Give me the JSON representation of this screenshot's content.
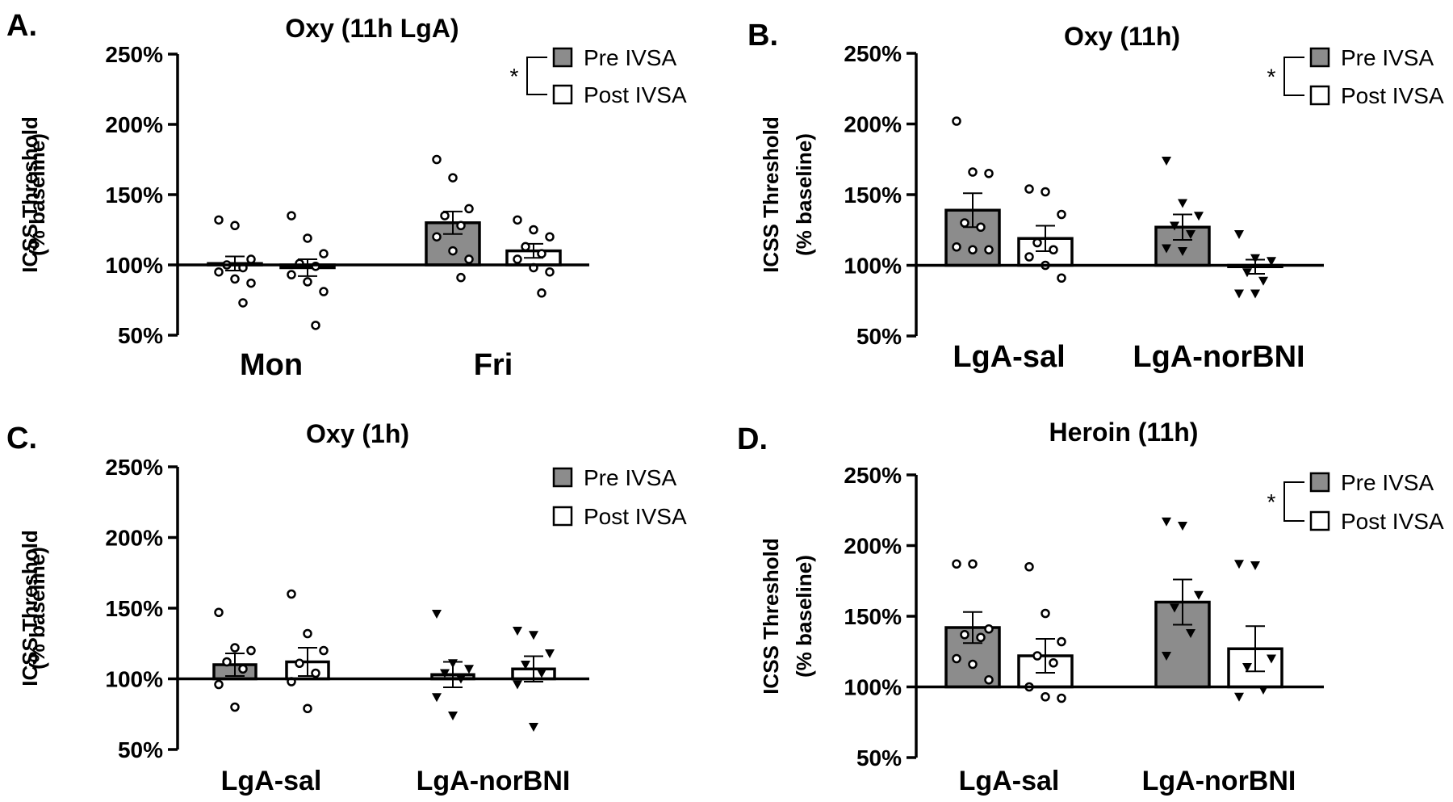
{
  "chart_data": [
    {
      "panel": "A.",
      "type": "bar",
      "title": "Oxy (11h LgA)",
      "ylabel": [
        "ICSS Threshold",
        "(% baseline)"
      ],
      "ylim": [
        50,
        250
      ],
      "yticks": [
        50,
        100,
        150,
        200,
        250
      ],
      "ytick_labels": [
        "50%",
        "100%",
        "150%",
        "200%",
        "250%"
      ],
      "baseline": 100,
      "categories": [
        "Mon",
        "Fri"
      ],
      "series": [
        {
          "name": "Pre IVSA",
          "values": [
            101,
            130
          ],
          "sem": [
            5,
            8
          ],
          "points": [
            [
              132,
              128,
              104,
              100,
              98,
              95,
              90,
              87,
              73
            ],
            [
              175,
              162,
              140,
              135,
              128,
              120,
              110,
              104,
              91
            ]
          ],
          "marker": "circle"
        },
        {
          "name": "Post IVSA",
          "values": [
            98,
            110
          ],
          "sem": [
            6,
            5
          ],
          "points": [
            [
              135,
              119,
              108,
              101,
              99,
              93,
              88,
              81,
              57
            ],
            [
              132,
              125,
              120,
              113,
              108,
              104,
              98,
              95,
              80
            ]
          ],
          "marker": "circle"
        }
      ],
      "legend": {
        "entries": [
          "Pre IVSA",
          "Post IVSA"
        ],
        "significance": "*"
      }
    },
    {
      "panel": "B.",
      "type": "bar",
      "title": "Oxy (11h)",
      "ylabel": [
        "ICSS Threshold",
        "(% baseline)"
      ],
      "ylim": [
        50,
        250
      ],
      "yticks": [
        50,
        100,
        150,
        200,
        250
      ],
      "ytick_labels": [
        "50%",
        "100%",
        "150%",
        "200%",
        "250%"
      ],
      "baseline": 100,
      "categories": [
        "LgA-sal",
        "LgA-norBNI"
      ],
      "series": [
        {
          "name": "Pre IVSA",
          "values": [
            139,
            127
          ],
          "sem": [
            12,
            9
          ],
          "points": [
            [
              202,
              166,
              165,
              130,
              127,
              113,
              111,
              111
            ],
            [
              174,
              144,
              135,
              128,
              122,
              112,
              110
            ]
          ],
          "marker": [
            "circle",
            "triangle"
          ]
        },
        {
          "name": "Post IVSA",
          "values": [
            119,
            99
          ],
          "sem": [
            9,
            5
          ],
          "points": [
            [
              154,
              152,
              136,
              116,
              111,
              106,
              100,
              91
            ],
            [
              122,
              105,
              103,
              95,
              89,
              80,
              80
            ]
          ],
          "marker": [
            "circle",
            "triangle"
          ]
        }
      ],
      "legend": {
        "entries": [
          "Pre IVSA",
          "Post IVSA"
        ],
        "significance": "*"
      }
    },
    {
      "panel": "C.",
      "type": "bar",
      "title": "Oxy (1h)",
      "ylabel": [
        "ICSS Threshold",
        "(% baseline)"
      ],
      "ylim": [
        50,
        250
      ],
      "yticks": [
        50,
        100,
        150,
        200,
        250
      ],
      "ytick_labels": [
        "50%",
        "100%",
        "150%",
        "200%",
        "250%"
      ],
      "baseline": 100,
      "categories": [
        "LgA-sal",
        "LgA-norBNI"
      ],
      "series": [
        {
          "name": "Pre IVSA",
          "values": [
            110,
            103
          ],
          "sem": [
            8,
            9
          ],
          "points": [
            [
              147,
              122,
              120,
              112,
              107,
              96,
              80
            ],
            [
              146,
              111,
              107,
              104,
              100,
              87,
              74
            ]
          ],
          "marker": [
            "circle",
            "triangle"
          ]
        },
        {
          "name": "Post IVSA",
          "values": [
            112,
            107
          ],
          "sem": [
            10,
            9
          ],
          "points": [
            [
              160,
              132,
              120,
              111,
              104,
              98,
              79
            ],
            [
              134,
              131,
              118,
              110,
              104,
              96,
              66
            ]
          ],
          "marker": [
            "circle",
            "triangle"
          ]
        }
      ],
      "legend": {
        "entries": [
          "Pre IVSA",
          "Post IVSA"
        ],
        "significance": ""
      }
    },
    {
      "panel": "D.",
      "type": "bar",
      "title": "Heroin (11h)",
      "ylabel": [
        "ICSS Threshold",
        "(% baseline)"
      ],
      "ylim": [
        50,
        250
      ],
      "yticks": [
        50,
        100,
        150,
        200,
        250
      ],
      "ytick_labels": [
        "50%",
        "100%",
        "150%",
        "200%",
        "250%"
      ],
      "baseline": 100,
      "categories": [
        "LgA-sal",
        "LgA-norBNI"
      ],
      "series": [
        {
          "name": "Pre IVSA",
          "values": [
            142,
            160
          ],
          "sem": [
            11,
            16
          ],
          "points": [
            [
              187,
              187,
              141,
              137,
              135,
              120,
              116,
              105
            ],
            [
              217,
              214,
              165,
              156,
              138,
              122
            ]
          ],
          "marker": [
            "circle",
            "triangle"
          ]
        },
        {
          "name": "Post IVSA",
          "values": [
            122,
            127
          ],
          "sem": [
            12,
            16
          ],
          "points": [
            [
              185,
              152,
              132,
              122,
              117,
              100,
              93,
              92
            ],
            [
              187,
              186,
              120,
              114,
              98,
              93
            ]
          ],
          "marker": [
            "circle",
            "triangle"
          ]
        }
      ],
      "legend": {
        "entries": [
          "Pre IVSA",
          "Post IVSA"
        ],
        "significance": "*"
      }
    }
  ]
}
